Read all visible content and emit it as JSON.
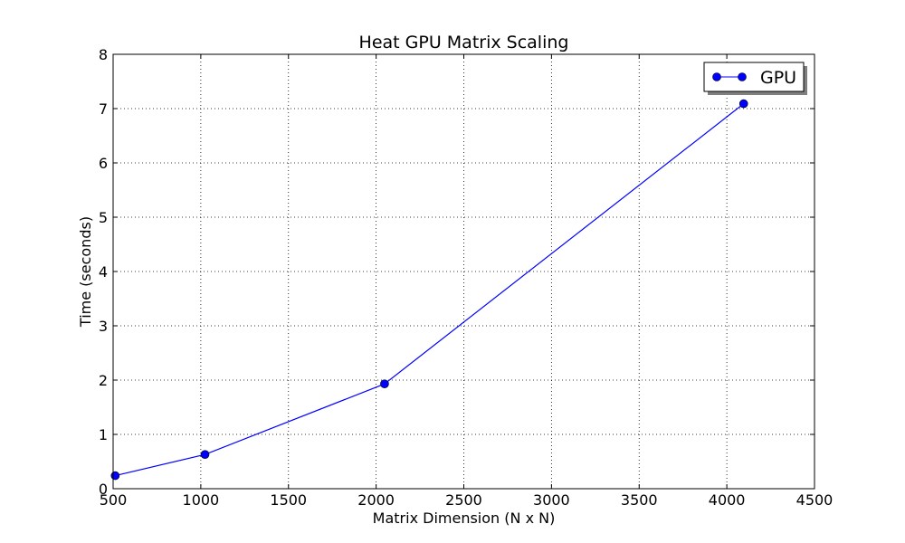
{
  "chart_data": {
    "type": "line",
    "title": "Heat GPU Matrix Scaling",
    "xlabel": "Matrix Dimension (N x N)",
    "ylabel": "Time (seconds)",
    "xlim": [
      500,
      4500
    ],
    "ylim": [
      0,
      8
    ],
    "xticks": [
      500,
      1000,
      1500,
      2000,
      2500,
      3000,
      3500,
      4000,
      4500
    ],
    "yticks": [
      0,
      1,
      2,
      3,
      4,
      5,
      6,
      7,
      8
    ],
    "xtick_labels": [
      "500",
      "1000",
      "1500",
      "2000",
      "2500",
      "3000",
      "3500",
      "4000",
      "4500"
    ],
    "ytick_labels": [
      "0",
      "1",
      "2",
      "3",
      "4",
      "5",
      "6",
      "7",
      "8"
    ],
    "grid": true,
    "legend_position": "top-right",
    "series": [
      {
        "name": "GPU",
        "color": "#0000ff",
        "marker": "circle",
        "x": [
          512,
          1024,
          2048,
          4096
        ],
        "y": [
          0.24,
          0.63,
          1.93,
          7.09
        ]
      }
    ]
  }
}
